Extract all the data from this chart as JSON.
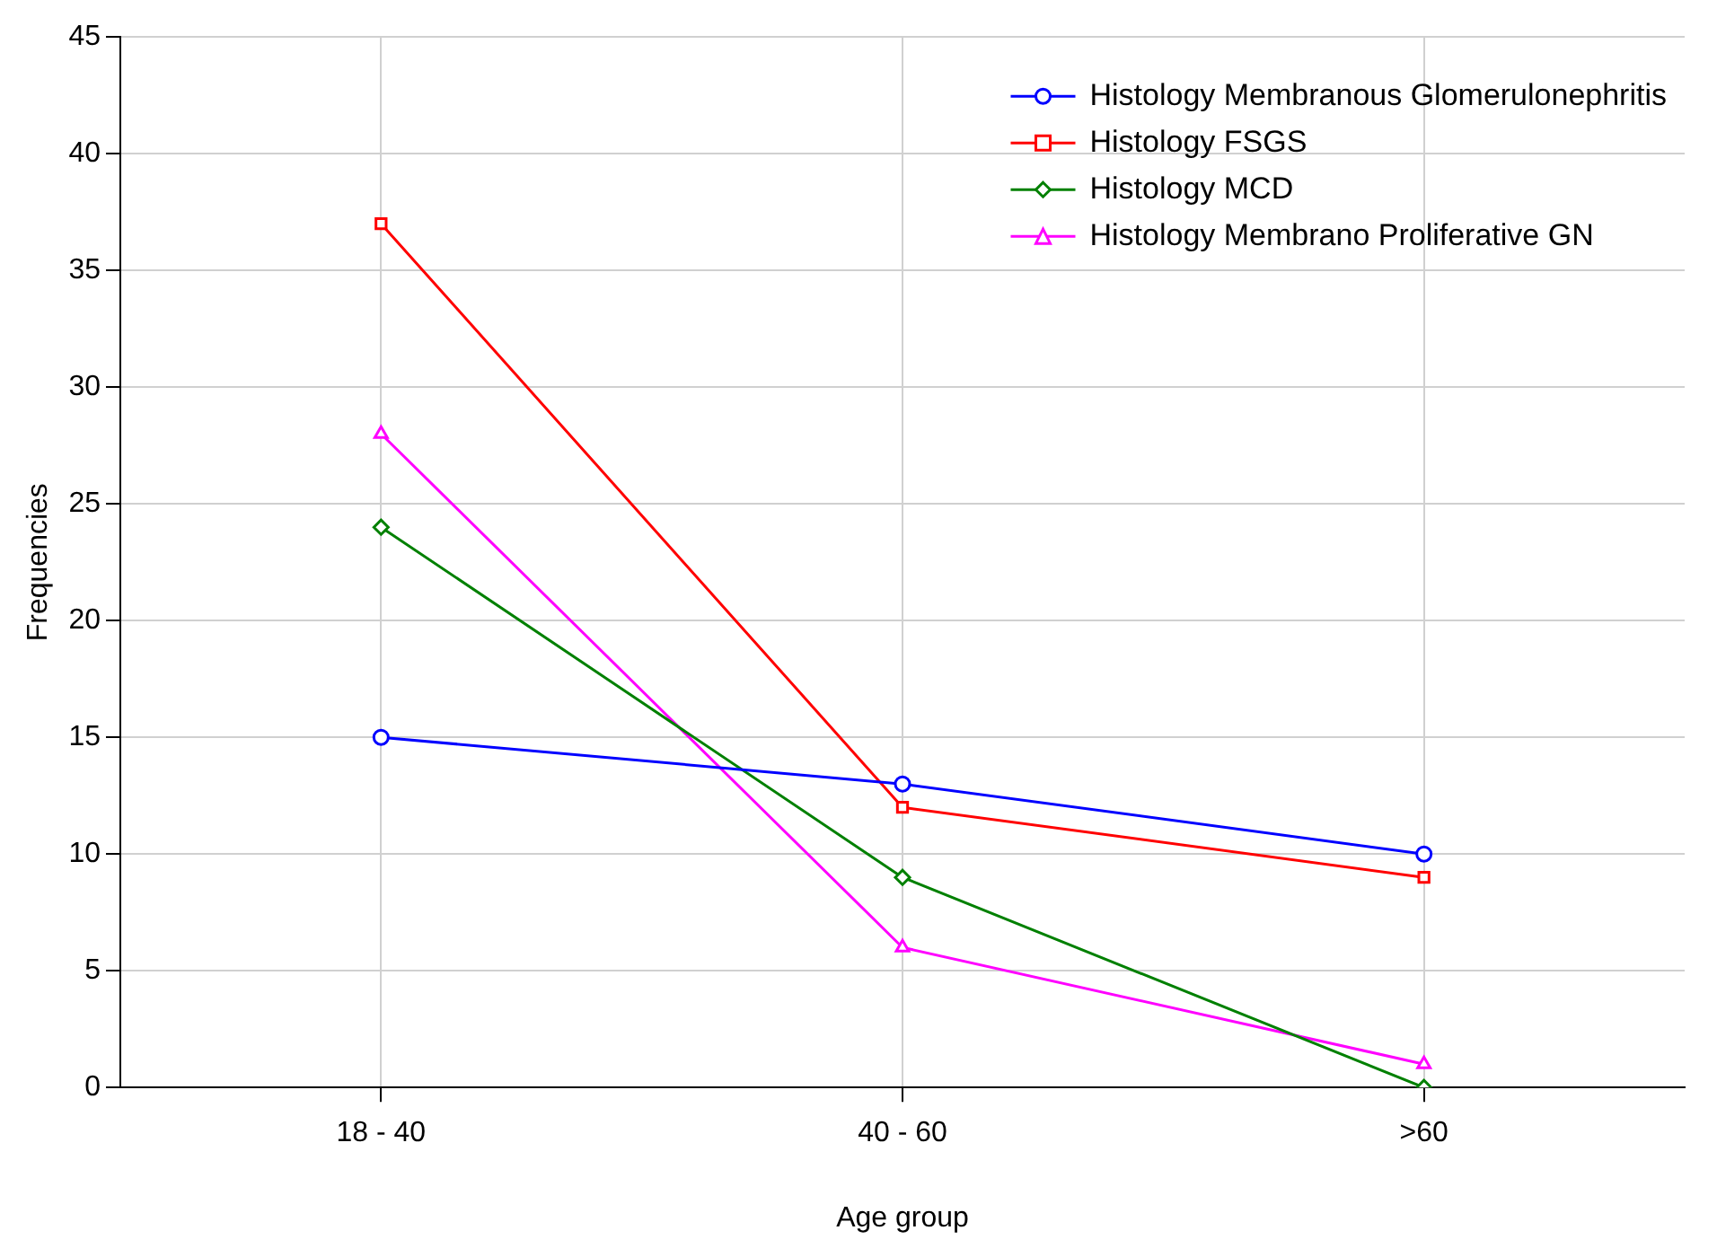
{
  "chart_data": {
    "type": "line",
    "xlabel": "Age group",
    "ylabel": "Frequencies",
    "categories": [
      "18 - 40",
      "40 - 60",
      ">60"
    ],
    "series": [
      {
        "name": "Histology Membranous Glomerulonephritis",
        "color": "#0000ff",
        "marker": "circle",
        "values": [
          15,
          13,
          10
        ]
      },
      {
        "name": "Histology FSGS",
        "color": "#ff0000",
        "marker": "square",
        "values": [
          37,
          12,
          9
        ]
      },
      {
        "name": "Histology MCD",
        "color": "#008000",
        "marker": "diamond",
        "values": [
          24,
          9,
          0
        ]
      },
      {
        "name": "Histology Membrano Proliferative GN",
        "color": "#ff00ff",
        "marker": "triangle",
        "values": [
          28,
          6,
          1
        ]
      }
    ],
    "ylim": [
      0,
      45
    ],
    "yticks": [
      0,
      5,
      10,
      15,
      20,
      25,
      30,
      35,
      40,
      45
    ],
    "grid": true,
    "legend": "top right",
    "line_style": "solid"
  }
}
